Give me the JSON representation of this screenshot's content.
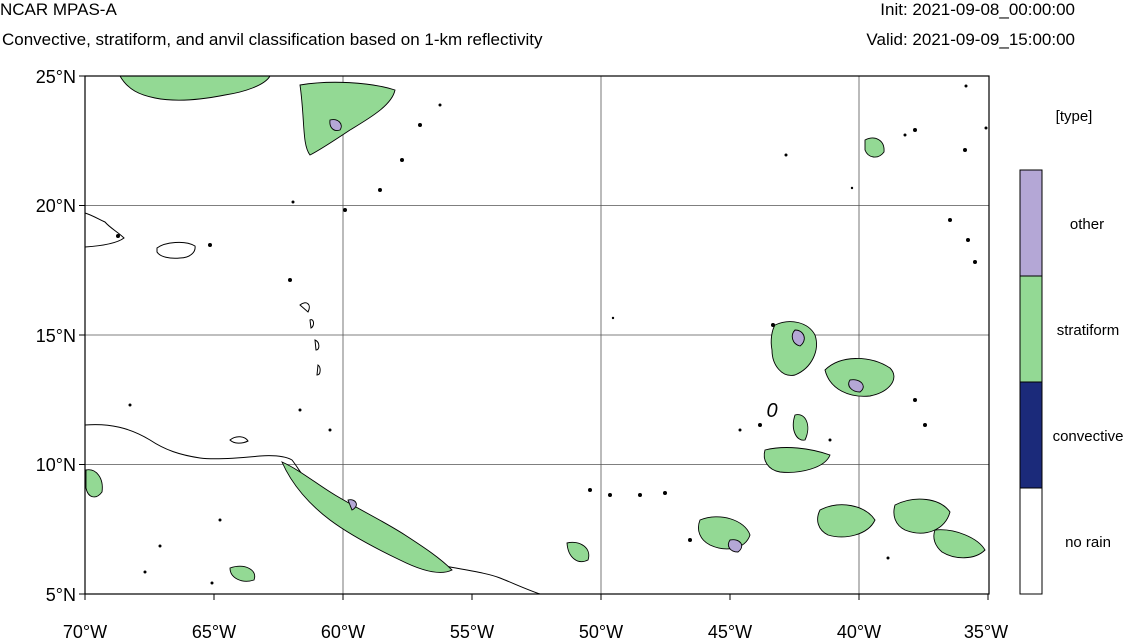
{
  "header": {
    "model": "NCAR MPAS-A",
    "subtitle": "Convective, stratiform, and anvil classification based on 1-km reflectivity",
    "init": "Init: 2021-09-08_00:00:00",
    "valid": "Valid: 2021-09-09_15:00:00"
  },
  "map": {
    "lon_range": [
      -70,
      -35
    ],
    "lat_range": [
      5,
      25
    ],
    "lon_ticks": [
      "70°W",
      "65°W",
      "60°W",
      "55°W",
      "50°W",
      "45°W",
      "40°W",
      "35°W"
    ],
    "lat_ticks": [
      "25°N",
      "20°N",
      "15°N",
      "10°N",
      "5°N"
    ],
    "gridlines": true,
    "marker_label": "0"
  },
  "legend": {
    "title": "[type]",
    "items": [
      {
        "label": "other",
        "color": "#b4a7d6"
      },
      {
        "label": "stratiform",
        "color": "#93d994"
      },
      {
        "label": "convective",
        "color": "#1b2a7a"
      },
      {
        "label": "no rain",
        "color": "#ffffff"
      }
    ]
  },
  "colors": {
    "other": "#b4a7d6",
    "stratiform": "#93d994",
    "convective": "#1b2a7a",
    "outline": "#000000"
  }
}
